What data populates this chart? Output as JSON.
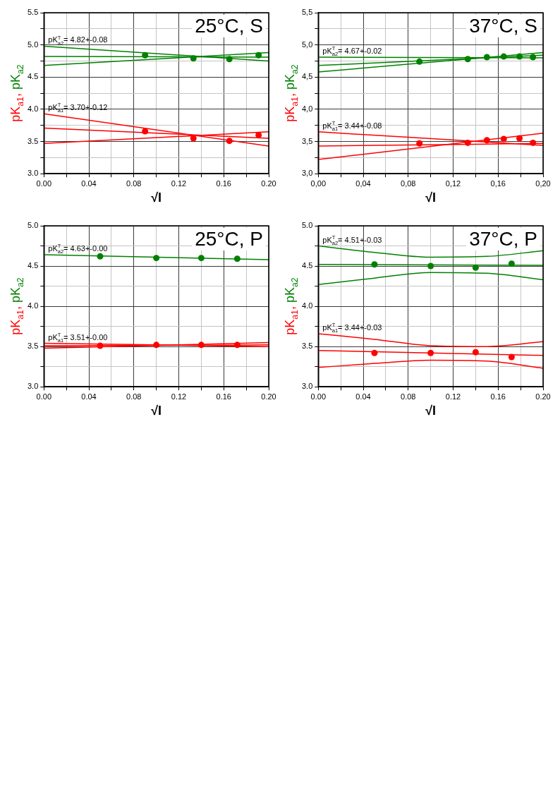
{
  "chart_data": [
    {
      "type": "scatter",
      "title": "25°C, S",
      "xlabel": "√I",
      "ylabel": "pK$_{a1}$, pK$_{a2}$",
      "grid": true,
      "xlim": [
        0,
        0.2
      ],
      "xticks": [
        {
          "value": 0,
          "label": "0.00"
        },
        {
          "value": 0.02,
          "label": null
        },
        {
          "value": 0.04,
          "label": "0.04"
        },
        {
          "value": 0.06,
          "label": null
        },
        {
          "value": 0.08,
          "label": "0.08"
        },
        {
          "value": 0.1,
          "label": null
        },
        {
          "value": 0.12,
          "label": "0.12"
        },
        {
          "value": 0.14,
          "label": null
        },
        {
          "value": 0.16,
          "label": "0.16"
        },
        {
          "value": 0.18,
          "label": null
        },
        {
          "value": 0.2,
          "label": "0.20"
        }
      ],
      "ylim": [
        3,
        5.5
      ],
      "yticks": [
        {
          "value": 3,
          "label": "3.0"
        },
        {
          "value": 3.25,
          "label": null
        },
        {
          "value": 3.5,
          "label": "3.5"
        },
        {
          "value": 3.75,
          "label": null
        },
        {
          "value": 4,
          "label": "4.0"
        },
        {
          "value": 4.25,
          "label": null
        },
        {
          "value": 4.5,
          "label": "4.5"
        },
        {
          "value": 4.75,
          "label": null
        },
        {
          "value": 5,
          "label": "5.0"
        },
        {
          "value": 5.25,
          "label": null
        },
        {
          "value": 5.5,
          "label": "5.5"
        }
      ],
      "series": [
        {
          "type": "scatter",
          "marker": "circle",
          "color": "#008000",
          "x": [
            0.09,
            0.133,
            0.165,
            0.191
          ],
          "values": [
            4.84,
            4.79,
            4.78,
            4.84
          ]
        },
        {
          "type": "line",
          "color": "#008000",
          "x": [
            0,
            0.2
          ],
          "values": [
            4.82,
            4.81
          ]
        },
        {
          "type": "line",
          "color": "#008000",
          "x": [
            0,
            0.2
          ],
          "values": [
            4.98,
            4.75
          ]
        },
        {
          "type": "line",
          "color": "#008000",
          "x": [
            0,
            0.2
          ],
          "values": [
            4.68,
            4.88
          ]
        },
        {
          "type": "scatter",
          "marker": "circle",
          "color": "#ff0000",
          "x": [
            0.09,
            0.133,
            0.165,
            0.191
          ],
          "values": [
            3.66,
            3.55,
            3.51,
            3.6
          ]
        },
        {
          "type": "line",
          "color": "#ff0000",
          "x": [
            0,
            0.2
          ],
          "values": [
            3.71,
            3.55
          ]
        },
        {
          "type": "line",
          "color": "#ff0000",
          "x": [
            0,
            0.2
          ],
          "values": [
            3.93,
            3.43
          ]
        },
        {
          "type": "line",
          "color": "#ff0000",
          "x": [
            0,
            0.2
          ],
          "values": [
            3.47,
            3.65
          ]
        }
      ],
      "annotations": [
        "pK$^{T}$$_{a2}$= 4.82+-0.08",
        "pK$^{T}$$_{a1}$= 3.70+-0.12"
      ]
    },
    {
      "type": "scatter",
      "title": "37°C, S",
      "xlabel": "√I",
      "ylabel": "pK$_{a1}$, pK$_{a2}$",
      "grid": true,
      "xlim": [
        0,
        0.2
      ],
      "xticks": [
        {
          "value": 0,
          "label": "0,00"
        },
        {
          "value": 0.02,
          "label": null
        },
        {
          "value": 0.04,
          "label": "0,04"
        },
        {
          "value": 0.06,
          "label": null
        },
        {
          "value": 0.08,
          "label": "0,08"
        },
        {
          "value": 0.1,
          "label": null
        },
        {
          "value": 0.12,
          "label": "0,12"
        },
        {
          "value": 0.14,
          "label": null
        },
        {
          "value": 0.16,
          "label": "0,16"
        },
        {
          "value": 0.18,
          "label": null
        },
        {
          "value": 0.2,
          "label": "0,20"
        }
      ],
      "ylim": [
        3,
        5.5
      ],
      "yticks": [
        {
          "value": 3,
          "label": "3,0"
        },
        {
          "value": 3.25,
          "label": null
        },
        {
          "value": 3.5,
          "label": "3,5"
        },
        {
          "value": 3.75,
          "label": null
        },
        {
          "value": 4,
          "label": "4,0"
        },
        {
          "value": 4.25,
          "label": null
        },
        {
          "value": 4.5,
          "label": "4,5"
        },
        {
          "value": 4.75,
          "label": null
        },
        {
          "value": 5,
          "label": "5,0"
        },
        {
          "value": 5.25,
          "label": null
        },
        {
          "value": 5.5,
          "label": "5,5"
        }
      ],
      "series": [
        {
          "type": "scatter",
          "marker": "circle",
          "color": "#008000",
          "x": [
            0.09,
            0.133,
            0.15,
            0.165,
            0.179,
            0.191
          ],
          "values": [
            4.74,
            4.78,
            4.81,
            4.82,
            4.82,
            4.81
          ]
        },
        {
          "type": "line",
          "color": "#008000",
          "x": [
            0,
            0.2
          ],
          "values": [
            4.68,
            4.84
          ]
        },
        {
          "type": "line",
          "color": "#008000",
          "x": [
            0,
            0.2
          ],
          "values": [
            4.58,
            4.88
          ]
        },
        {
          "type": "line",
          "color": "#008000",
          "x": [
            0,
            0.2
          ],
          "values": [
            4.81,
            4.8
          ]
        },
        {
          "type": "scatter",
          "marker": "circle",
          "color": "#ff0000",
          "x": [
            0.09,
            0.133,
            0.15,
            0.165,
            0.179,
            0.191
          ],
          "values": [
            3.47,
            3.48,
            3.52,
            3.54,
            3.55,
            3.48
          ]
        },
        {
          "type": "line",
          "color": "#ff0000",
          "x": [
            0,
            0.2
          ],
          "values": [
            3.43,
            3.47
          ]
        },
        {
          "type": "line",
          "color": "#ff0000",
          "x": [
            0,
            0.2
          ],
          "values": [
            3.65,
            3.44
          ]
        },
        {
          "type": "line",
          "color": "#ff0000",
          "x": [
            0,
            0.2
          ],
          "values": [
            3.22,
            3.63
          ]
        }
      ],
      "annotations": [
        "pK$^{T}$$_{a2}$= 4.67+-0.02",
        "pK$^{T}$$_{a1}$= 3.44+-0.08"
      ]
    },
    {
      "type": "scatter",
      "title": "25°C, P",
      "xlabel": "√I",
      "ylabel": "pK$_{a1}$, pK$_{a2}$",
      "grid": true,
      "xlim": [
        0,
        0.2
      ],
      "xticks": [
        {
          "value": 0,
          "label": "0.00"
        },
        {
          "value": 0.02,
          "label": null
        },
        {
          "value": 0.04,
          "label": "0.04"
        },
        {
          "value": 0.06,
          "label": null
        },
        {
          "value": 0.08,
          "label": "0.08"
        },
        {
          "value": 0.1,
          "label": null
        },
        {
          "value": 0.12,
          "label": "0.12"
        },
        {
          "value": 0.14,
          "label": null
        },
        {
          "value": 0.16,
          "label": "0.16"
        },
        {
          "value": 0.18,
          "label": null
        },
        {
          "value": 0.2,
          "label": "0.20"
        }
      ],
      "ylim": [
        3,
        5
      ],
      "yticks": [
        {
          "value": 3,
          "label": "3.0"
        },
        {
          "value": 3.25,
          "label": null
        },
        {
          "value": 3.5,
          "label": "3.5"
        },
        {
          "value": 3.75,
          "label": null
        },
        {
          "value": 4,
          "label": "4.0"
        },
        {
          "value": 4.25,
          "label": null
        },
        {
          "value": 4.5,
          "label": "4.5"
        },
        {
          "value": 4.75,
          "label": null
        },
        {
          "value": 5,
          "label": "5.0"
        }
      ],
      "series": [
        {
          "type": "scatter",
          "marker": "circle",
          "color": "#008000",
          "x": [
            0.05,
            0.1,
            0.14,
            0.172
          ],
          "values": [
            4.62,
            4.6,
            4.6,
            4.59
          ]
        },
        {
          "type": "line",
          "color": "#008000",
          "x": [
            0,
            0.2
          ],
          "values": [
            4.64,
            4.58
          ]
        },
        {
          "type": "scatter",
          "marker": "circle",
          "color": "#ff0000",
          "x": [
            0.05,
            0.1,
            0.14,
            0.172
          ],
          "values": [
            3.51,
            3.52,
            3.52,
            3.52
          ]
        },
        {
          "type": "line",
          "color": "#ff0000",
          "x": [
            0,
            0.2
          ],
          "values": [
            3.51,
            3.52
          ]
        },
        {
          "type": "line",
          "color": "#ff0000",
          "x": [
            0,
            0.2
          ],
          "values": [
            3.54,
            3.5
          ]
        },
        {
          "type": "line",
          "color": "#ff0000",
          "x": [
            0,
            0.2
          ],
          "values": [
            3.48,
            3.55
          ]
        }
      ],
      "annotations": [
        "pK$^{T}$$_{a2}$= 4.63+-0.00",
        "pK$^{T}$$_{a1}$= 3.51+-0.00"
      ]
    },
    {
      "type": "scatter",
      "title": "37°C, P",
      "xlabel": "√I",
      "ylabel": "pK$_{a1}$, pK$_{a2}$",
      "grid": true,
      "xlim": [
        0,
        0.2
      ],
      "xticks": [
        {
          "value": 0,
          "label": "0.00"
        },
        {
          "value": 0.02,
          "label": null
        },
        {
          "value": 0.04,
          "label": "0.04"
        },
        {
          "value": 0.06,
          "label": null
        },
        {
          "value": 0.08,
          "label": "0.08"
        },
        {
          "value": 0.1,
          "label": null
        },
        {
          "value": 0.12,
          "label": "0.12"
        },
        {
          "value": 0.14,
          "label": null
        },
        {
          "value": 0.16,
          "label": "0.16"
        },
        {
          "value": 0.18,
          "label": null
        },
        {
          "value": 0.2,
          "label": "0.20"
        }
      ],
      "ylim": [
        3,
        5
      ],
      "yticks": [
        {
          "value": 3,
          "label": "3.0"
        },
        {
          "value": 3.25,
          "label": null
        },
        {
          "value": 3.5,
          "label": "3.5"
        },
        {
          "value": 3.75,
          "label": null
        },
        {
          "value": 4,
          "label": "4.0"
        },
        {
          "value": 4.25,
          "label": null
        },
        {
          "value": 4.5,
          "label": "4.5"
        },
        {
          "value": 4.75,
          "label": null
        },
        {
          "value": 5,
          "label": "5.0"
        }
      ],
      "series": [
        {
          "type": "scatter",
          "marker": "circle",
          "color": "#008000",
          "x": [
            0.05,
            0.1,
            0.14,
            0.172
          ],
          "values": [
            4.52,
            4.5,
            4.48,
            4.53
          ]
        },
        {
          "type": "line",
          "color": "#008000",
          "x": [
            0,
            0.2
          ],
          "values": [
            4.52,
            4.51
          ]
        },
        {
          "type": "line",
          "color": "#008000",
          "x": [
            0,
            0.05,
            0.1,
            0.15,
            0.2
          ],
          "values": [
            4.75,
            4.67,
            4.61,
            4.62,
            4.69
          ]
        },
        {
          "type": "line",
          "color": "#008000",
          "x": [
            0,
            0.05,
            0.1,
            0.15,
            0.2
          ],
          "values": [
            4.27,
            4.35,
            4.42,
            4.41,
            4.33
          ]
        },
        {
          "type": "scatter",
          "marker": "circle",
          "color": "#ff0000",
          "x": [
            0.05,
            0.1,
            0.14,
            0.172
          ],
          "values": [
            3.42,
            3.42,
            3.43,
            3.37
          ]
        },
        {
          "type": "line",
          "color": "#ff0000",
          "x": [
            0,
            0.2
          ],
          "values": [
            3.45,
            3.39
          ]
        },
        {
          "type": "line",
          "color": "#ff0000",
          "x": [
            0,
            0.05,
            0.1,
            0.15,
            0.2
          ],
          "values": [
            3.66,
            3.59,
            3.51,
            3.5,
            3.56
          ]
        },
        {
          "type": "line",
          "color": "#ff0000",
          "x": [
            0,
            0.05,
            0.1,
            0.15,
            0.2
          ],
          "values": [
            3.24,
            3.29,
            3.33,
            3.32,
            3.23
          ]
        }
      ],
      "annotations": [
        "pK$^{T}$$_{a2}$= 4.51+-0.03",
        "pK$^{T}$$_{a1}$= 3.44+-0.03"
      ]
    }
  ]
}
